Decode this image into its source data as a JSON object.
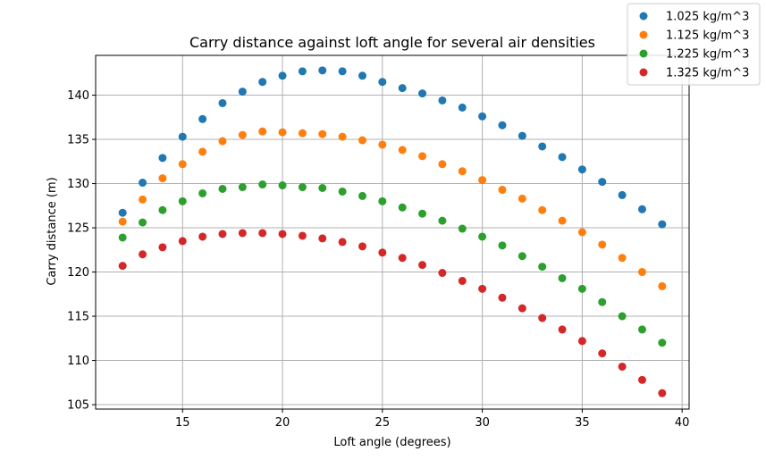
{
  "chart_data": {
    "type": "scatter",
    "title": "Carry distance against loft angle for several air densities",
    "xlabel": "Loft angle (degrees)",
    "ylabel": "Carry distance (m)",
    "xlim": [
      10.65,
      40.35
    ],
    "ylim": [
      104.5,
      144.5
    ],
    "xticks": [
      15,
      20,
      25,
      30,
      35,
      40
    ],
    "yticks": [
      105,
      110,
      115,
      120,
      125,
      130,
      135,
      140
    ],
    "grid": true,
    "legend_position": "top-right, outside plot",
    "x": [
      12,
      13,
      14,
      15,
      16,
      17,
      18,
      19,
      20,
      21,
      22,
      23,
      24,
      25,
      26,
      27,
      28,
      29,
      30,
      31,
      32,
      33,
      34,
      35,
      36,
      37,
      38,
      39
    ],
    "series": [
      {
        "name": "1.025 kg/m^3",
        "color": "#1f77b4",
        "values": [
          126.7,
          130.1,
          132.9,
          135.3,
          137.3,
          139.1,
          140.4,
          141.5,
          142.2,
          142.7,
          142.8,
          142.7,
          142.2,
          141.5,
          140.8,
          140.2,
          139.4,
          138.6,
          137.6,
          136.6,
          135.4,
          134.2,
          133.0,
          131.6,
          130.2,
          128.7,
          127.1,
          125.4
        ]
      },
      {
        "name": "1.125 kg/m^3",
        "color": "#ff7f0e",
        "values": [
          125.7,
          128.2,
          130.6,
          132.2,
          133.6,
          134.8,
          135.5,
          135.9,
          135.8,
          135.7,
          135.6,
          135.3,
          134.9,
          134.4,
          133.8,
          133.1,
          132.2,
          131.4,
          130.4,
          129.3,
          128.3,
          127.0,
          125.8,
          124.5,
          123.1,
          121.6,
          120.0,
          118.4
        ]
      },
      {
        "name": "1.225 kg/m^3",
        "color": "#2ca02c",
        "values": [
          123.9,
          125.6,
          127.0,
          128.0,
          128.9,
          129.4,
          129.6,
          129.9,
          129.8,
          129.6,
          129.5,
          129.1,
          128.6,
          128.0,
          127.3,
          126.6,
          125.8,
          124.9,
          124.0,
          123.0,
          121.8,
          120.6,
          119.3,
          118.1,
          116.6,
          115.0,
          113.5,
          112.0
        ]
      },
      {
        "name": "1.325 kg/m^3",
        "color": "#d62728",
        "values": [
          120.7,
          122.0,
          122.8,
          123.5,
          124.0,
          124.3,
          124.4,
          124.4,
          124.3,
          124.1,
          123.8,
          123.4,
          122.9,
          122.2,
          121.6,
          120.8,
          119.9,
          119.0,
          118.1,
          117.1,
          115.9,
          114.8,
          113.5,
          112.2,
          110.8,
          109.3,
          107.8,
          106.3
        ]
      }
    ]
  }
}
